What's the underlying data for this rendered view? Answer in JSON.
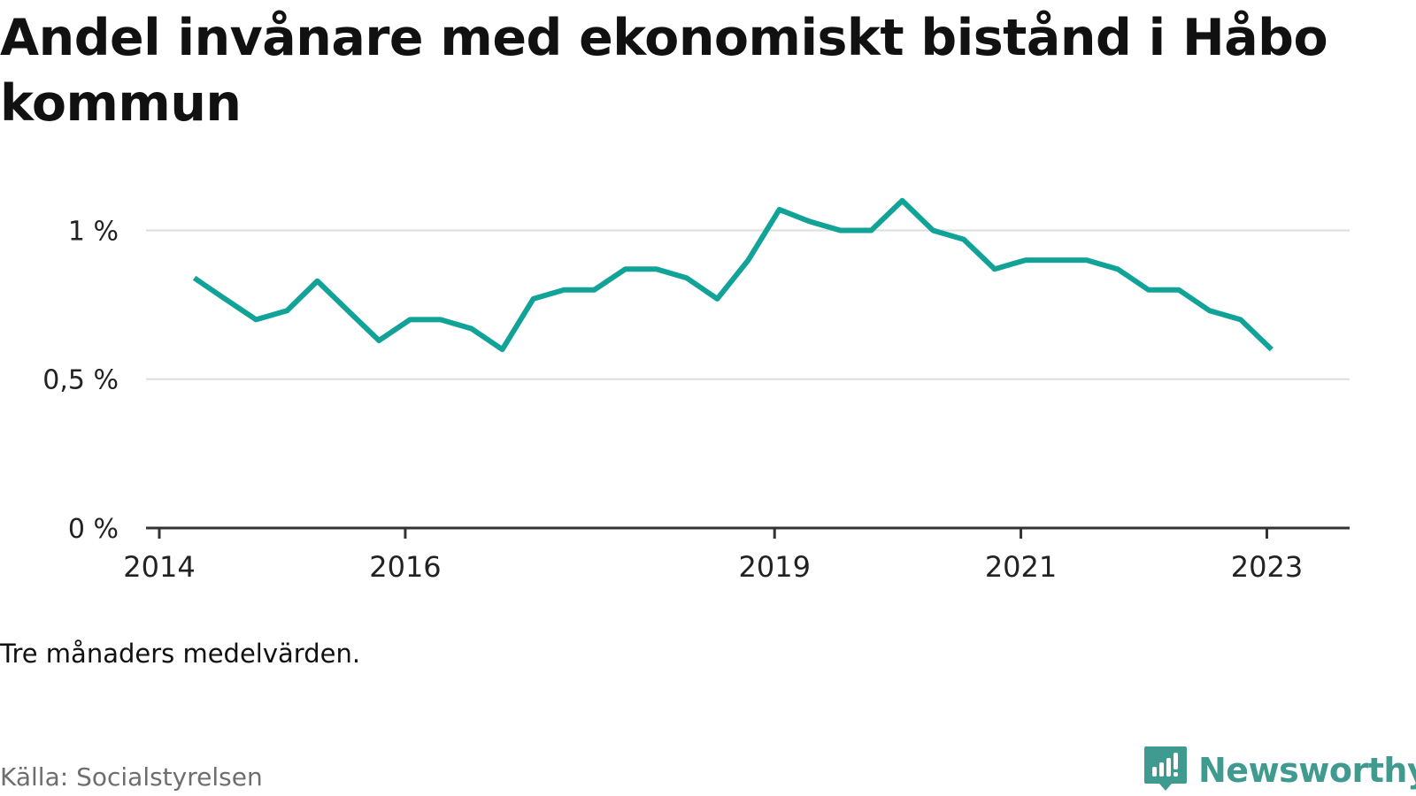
{
  "title": "Andel invånare med ekonomiskt bistånd i Håbo kommun",
  "note": "Tre månaders medelvärden.",
  "source": "Källa: Socialstyrelsen",
  "brand": {
    "name": "Newsworthy",
    "icon": "newsworthy-logo-icon",
    "color": "#3f9a8f"
  },
  "chart_data": {
    "type": "line",
    "title": "Andel invånare med ekonomiskt bistånd i Håbo kommun",
    "xlabel": "",
    "ylabel": "",
    "y_unit": "%",
    "ylim": [
      0,
      1.15
    ],
    "y_ticks": [
      0,
      0.5,
      1
    ],
    "y_tick_labels": [
      "0 %",
      "0,5 %",
      "1 %"
    ],
    "x_ticks": [
      "2014",
      "2016",
      "2019",
      "2021",
      "2023"
    ],
    "x_tick_dates": [
      "2014-01-01",
      "2016-01-01",
      "2019-01-01",
      "2021-01-01",
      "2023-01-01"
    ],
    "x_range": [
      "2014-01-01",
      "2023-09-01"
    ],
    "grid": true,
    "line_color": "#11a397",
    "series": [
      {
        "name": "",
        "points": [
          {
            "x": "2014-04-15",
            "y": 0.84
          },
          {
            "x": "2014-07-15",
            "y": 0.77
          },
          {
            "x": "2014-10-15",
            "y": 0.7
          },
          {
            "x": "2015-01-15",
            "y": 0.73
          },
          {
            "x": "2015-04-15",
            "y": 0.83
          },
          {
            "x": "2015-07-15",
            "y": 0.73
          },
          {
            "x": "2015-10-15",
            "y": 0.63
          },
          {
            "x": "2016-01-15",
            "y": 0.7
          },
          {
            "x": "2016-04-15",
            "y": 0.7
          },
          {
            "x": "2016-07-15",
            "y": 0.67
          },
          {
            "x": "2016-10-15",
            "y": 0.6
          },
          {
            "x": "2017-01-15",
            "y": 0.77
          },
          {
            "x": "2017-04-15",
            "y": 0.8
          },
          {
            "x": "2017-07-15",
            "y": 0.8
          },
          {
            "x": "2017-10-15",
            "y": 0.87
          },
          {
            "x": "2018-01-15",
            "y": 0.87
          },
          {
            "x": "2018-04-15",
            "y": 0.84
          },
          {
            "x": "2018-07-15",
            "y": 0.77
          },
          {
            "x": "2018-10-15",
            "y": 0.9
          },
          {
            "x": "2019-01-15",
            "y": 1.07
          },
          {
            "x": "2019-04-15",
            "y": 1.03
          },
          {
            "x": "2019-07-15",
            "y": 1.0
          },
          {
            "x": "2019-10-15",
            "y": 1.0
          },
          {
            "x": "2020-01-15",
            "y": 1.1
          },
          {
            "x": "2020-04-15",
            "y": 1.0
          },
          {
            "x": "2020-07-15",
            "y": 0.97
          },
          {
            "x": "2020-10-15",
            "y": 0.87
          },
          {
            "x": "2021-01-15",
            "y": 0.9
          },
          {
            "x": "2021-04-15",
            "y": 0.9
          },
          {
            "x": "2021-07-15",
            "y": 0.9
          },
          {
            "x": "2021-10-15",
            "y": 0.87
          },
          {
            "x": "2022-01-15",
            "y": 0.8
          },
          {
            "x": "2022-04-15",
            "y": 0.8
          },
          {
            "x": "2022-07-15",
            "y": 0.73
          },
          {
            "x": "2022-10-15",
            "y": 0.7
          },
          {
            "x": "2023-01-15",
            "y": 0.6
          }
        ]
      }
    ]
  }
}
